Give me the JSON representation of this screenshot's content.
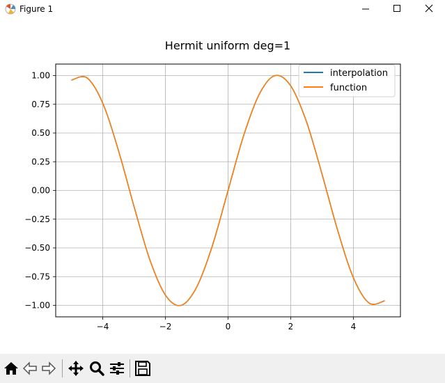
{
  "window": {
    "title": "Figure 1",
    "icons": {
      "app": "matplotlib-icon",
      "minimize": "minimize-icon",
      "maximize": "maximize-icon",
      "close": "close-icon"
    }
  },
  "toolbar": {
    "buttons": [
      {
        "name": "home-button",
        "icon": "home-icon"
      },
      {
        "name": "back-button",
        "icon": "back-arrow-icon"
      },
      {
        "name": "forward-button",
        "icon": "forward-arrow-icon"
      },
      {
        "name": "pan-button",
        "icon": "move-icon"
      },
      {
        "name": "zoom-button",
        "icon": "magnifier-icon"
      },
      {
        "name": "configure-subplots-button",
        "icon": "sliders-icon"
      },
      {
        "name": "save-button",
        "icon": "floppy-disk-icon"
      }
    ]
  },
  "chart_data": {
    "type": "line",
    "title": "Hermit uniform deg=1",
    "xlabel": "",
    "ylabel": "",
    "xlim": [
      -5.5,
      5.5
    ],
    "ylim": [
      -1.1,
      1.1
    ],
    "x_ticks": [
      -4,
      -2,
      0,
      2,
      4
    ],
    "x_tick_labels": [
      "−4",
      "−2",
      "0",
      "2",
      "4"
    ],
    "y_ticks": [
      1.0,
      0.75,
      0.5,
      0.25,
      0.0,
      -0.25,
      -0.5,
      -0.75,
      -1.0
    ],
    "y_tick_labels": [
      "1.00",
      "0.75",
      "0.50",
      "0.25",
      "0.00",
      "−0.25",
      "−0.50",
      "−0.75",
      "−1.00"
    ],
    "grid": true,
    "legend_position": "top-right",
    "series": [
      {
        "name": "interpolation",
        "color": "#1f77b4",
        "x": [
          -5,
          -4.5,
          -4,
          -3.5,
          -3,
          -2.5,
          -2,
          -1.5,
          -1,
          -0.5,
          0,
          0.5,
          1,
          1.5,
          2,
          2.5,
          3,
          3.5,
          4,
          4.5,
          5
        ],
        "y": [
          0.96,
          0.98,
          0.76,
          0.35,
          -0.14,
          -0.6,
          -0.91,
          -1.0,
          -0.84,
          -0.48,
          0.0,
          0.48,
          0.84,
          1.0,
          0.91,
          0.6,
          0.14,
          -0.35,
          -0.76,
          -0.98,
          -0.96
        ]
      },
      {
        "name": "function",
        "color": "#ff7f0e",
        "x": [
          -5,
          -4.5,
          -4,
          -3.5,
          -3,
          -2.5,
          -2,
          -1.5,
          -1,
          -0.5,
          0,
          0.5,
          1,
          1.5,
          2,
          2.5,
          3,
          3.5,
          4,
          4.5,
          5
        ],
        "y": [
          0.96,
          0.98,
          0.76,
          0.35,
          -0.14,
          -0.6,
          -0.91,
          -1.0,
          -0.84,
          -0.48,
          0.0,
          0.48,
          0.84,
          1.0,
          0.91,
          0.6,
          0.14,
          -0.35,
          -0.76,
          -0.98,
          -0.96
        ]
      }
    ]
  }
}
